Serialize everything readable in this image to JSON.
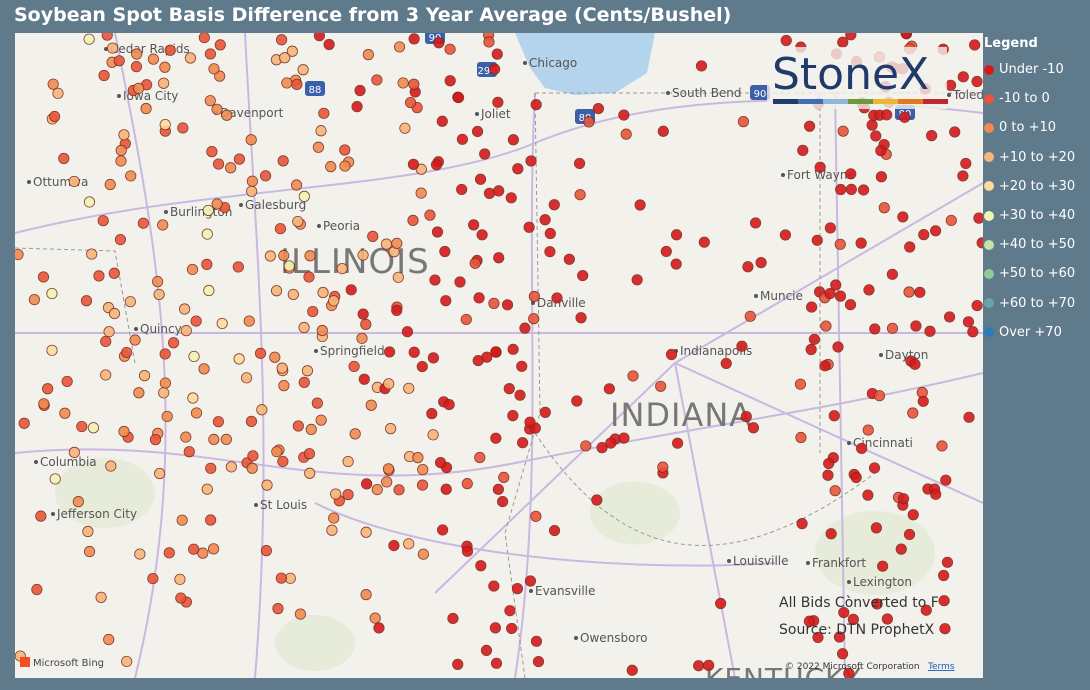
{
  "title": "Soybean Spot Basis Difference from 3 Year Average (Cents/Bushel)",
  "legend": {
    "title": "Legend",
    "items": [
      {
        "label": "Under -10",
        "color": "#d7191c"
      },
      {
        "label": "-10 to 0",
        "color": "#e8553a"
      },
      {
        "label": "0 to +10",
        "color": "#f08c50"
      },
      {
        "label": "+10 to +20",
        "color": "#f7b67a"
      },
      {
        "label": "+20 to +30",
        "color": "#fcdc9c"
      },
      {
        "label": "+30 to +40",
        "color": "#eef4b4"
      },
      {
        "label": "+40 to +50",
        "color": "#c4e3a6"
      },
      {
        "label": "+50 to +60",
        "color": "#8ec99a"
      },
      {
        "label": "+60 to +70",
        "color": "#6aa3ad"
      },
      {
        "label": "Over +70",
        "color": "#2b7bba"
      }
    ]
  },
  "logo": "StoneX",
  "map": {
    "states": [
      "ILLINOIS",
      "INDIANA",
      "KENTUCKY"
    ],
    "cities": [
      "Cedar Rapids",
      "Iowa City",
      "Davenport",
      "Chicago",
      "Joliet",
      "South Bend",
      "Toledo",
      "Ottumwa",
      "Burlington",
      "Galesburg",
      "Peoria",
      "Fort Wayne",
      "Danville",
      "Quincy",
      "Springfield",
      "Muncie",
      "Indianapolis",
      "Dayton",
      "Columbia",
      "Cincinnati",
      "Jefferson City",
      "St Louis",
      "Louisville",
      "Frankfort",
      "Lexington",
      "Evansville",
      "Owensboro"
    ],
    "shields": [
      "90",
      "294",
      "88",
      "80",
      "90",
      "80"
    ]
  },
  "notes": [
    "All Bids Cònverted to F",
    "Source: DTN ProphetX"
  ],
  "attribution": {
    "brand": "Microsoft Bing",
    "copyright": "© 2022 Microsoft Corporation",
    "terms": "Terms"
  }
}
